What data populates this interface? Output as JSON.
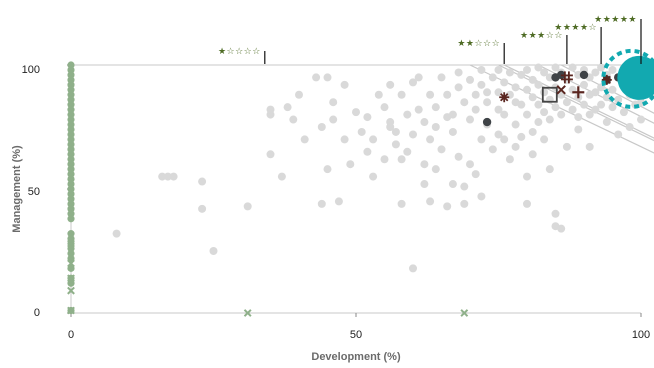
{
  "chart_data": {
    "type": "scatter",
    "xlabel": "Development (%)",
    "ylabel": "Management (%)",
    "xlim": [
      0,
      100
    ],
    "ylim": [
      0,
      100
    ],
    "x_ticks": [
      "0",
      "50",
      "100"
    ],
    "y_ticks": [
      "0",
      "50",
      "100"
    ],
    "star_thresholds": [
      {
        "x": 34,
        "label": "★☆☆☆☆"
      },
      {
        "x": 76,
        "label": "★★☆☆☆"
      },
      {
        "x": 87,
        "label": "★★★☆☆"
      },
      {
        "x": 93,
        "label": "★★★★☆"
      },
      {
        "x": 100,
        "label": "★★★★★"
      }
    ],
    "diagonals": [
      {
        "x1": 70,
        "y1": 100,
        "x2": 100,
        "y2": 70
      },
      {
        "x1": 76,
        "y1": 100,
        "x2": 100,
        "y2": 76
      },
      {
        "x1": 82,
        "y1": 100,
        "x2": 100,
        "y2": 82
      },
      {
        "x1": 75,
        "y1": 100,
        "x2": 100,
        "y2": 75
      },
      {
        "x1": 86,
        "y1": 100,
        "x2": 100,
        "y2": 86
      }
    ],
    "colors": {
      "gray_points": "#d9d9d9",
      "green_points": "#8fb08a",
      "dark_points": "#3f4347",
      "highlight_marks": "#5a2620",
      "teal_highlight": "#12a9b0",
      "star_green": "#4e6b24",
      "grid_line": "#c8c8c8"
    },
    "gray_points": [
      [
        8,
        32
      ],
      [
        16,
        55
      ],
      [
        17,
        55
      ],
      [
        18,
        55
      ],
      [
        23,
        53
      ],
      [
        23,
        42
      ],
      [
        25,
        25
      ],
      [
        31,
        43
      ],
      [
        35,
        80
      ],
      [
        35,
        82
      ],
      [
        35,
        64
      ],
      [
        37,
        55
      ],
      [
        38,
        83
      ],
      [
        39,
        78
      ],
      [
        40,
        88
      ],
      [
        41,
        70
      ],
      [
        43,
        95
      ],
      [
        44,
        44
      ],
      [
        44,
        75
      ],
      [
        45,
        58
      ],
      [
        45,
        95
      ],
      [
        46,
        85
      ],
      [
        46,
        78
      ],
      [
        47,
        45
      ],
      [
        48,
        70
      ],
      [
        48,
        92
      ],
      [
        49,
        60
      ],
      [
        50,
        81
      ],
      [
        51,
        73
      ],
      [
        52,
        65
      ],
      [
        52,
        79
      ],
      [
        53,
        55
      ],
      [
        53,
        70
      ],
      [
        54,
        88
      ],
      [
        55,
        83
      ],
      [
        55,
        62
      ],
      [
        56,
        75
      ],
      [
        56,
        92
      ],
      [
        57,
        68
      ],
      [
        57,
        73
      ],
      [
        58,
        88
      ],
      [
        58,
        44
      ],
      [
        59,
        80
      ],
      [
        59,
        65
      ],
      [
        60,
        72
      ],
      [
        60,
        93
      ],
      [
        61,
        82
      ],
      [
        61,
        95
      ],
      [
        62,
        77
      ],
      [
        62,
        60
      ],
      [
        63,
        88
      ],
      [
        63,
        70
      ],
      [
        63,
        45
      ],
      [
        64,
        83
      ],
      [
        64,
        75
      ],
      [
        65,
        95
      ],
      [
        65,
        66
      ],
      [
        66,
        88
      ],
      [
        66,
        43
      ],
      [
        67,
        80
      ],
      [
        67,
        73
      ],
      [
        68,
        97
      ],
      [
        68,
        91
      ],
      [
        68,
        63
      ],
      [
        69,
        85
      ],
      [
        69,
        44
      ],
      [
        70,
        78
      ],
      [
        70,
        94
      ],
      [
        70,
        60
      ],
      [
        71,
        88
      ],
      [
        71,
        82
      ],
      [
        72,
        98
      ],
      [
        72,
        92
      ],
      [
        72,
        70
      ],
      [
        73,
        85
      ],
      [
        73,
        76
      ],
      [
        74,
        95
      ],
      [
        74,
        66
      ],
      [
        75,
        98
      ],
      [
        75,
        89
      ],
      [
        75,
        82
      ],
      [
        75,
        72
      ],
      [
        76,
        93
      ],
      [
        76,
        80
      ],
      [
        77,
        97
      ],
      [
        77,
        88
      ],
      [
        77,
        62
      ],
      [
        78,
        91
      ],
      [
        78,
        85
      ],
      [
        78,
        76
      ],
      [
        78,
        67
      ],
      [
        79,
        96
      ],
      [
        79,
        84
      ],
      [
        79,
        71
      ],
      [
        80,
        98
      ],
      [
        80,
        90
      ],
      [
        80,
        80
      ],
      [
        80,
        55
      ],
      [
        80,
        44
      ],
      [
        81,
        94
      ],
      [
        81,
        87
      ],
      [
        81,
        73
      ],
      [
        82,
        99
      ],
      [
        82,
        92
      ],
      [
        82,
        84
      ],
      [
        82,
        77
      ],
      [
        83,
        97
      ],
      [
        83,
        89
      ],
      [
        83,
        81
      ],
      [
        84,
        95
      ],
      [
        84,
        86
      ],
      [
        84,
        78
      ],
      [
        85,
        99
      ],
      [
        85,
        91
      ],
      [
        85,
        83
      ],
      [
        85,
        40
      ],
      [
        85,
        35
      ],
      [
        86,
        97
      ],
      [
        86,
        88
      ],
      [
        86,
        80
      ],
      [
        86,
        34
      ],
      [
        87,
        94
      ],
      [
        87,
        85
      ],
      [
        88,
        99
      ],
      [
        88,
        90
      ],
      [
        88,
        82
      ],
      [
        89,
        96
      ],
      [
        89,
        87
      ],
      [
        89,
        79
      ],
      [
        90,
        98
      ],
      [
        90,
        92
      ],
      [
        90,
        84
      ],
      [
        91,
        95
      ],
      [
        91,
        88
      ],
      [
        91,
        80
      ],
      [
        92,
        97
      ],
      [
        92,
        89
      ],
      [
        92,
        82
      ],
      [
        93,
        99
      ],
      [
        93,
        91
      ],
      [
        93,
        84
      ],
      [
        94,
        96
      ],
      [
        94,
        87
      ],
      [
        95,
        98
      ],
      [
        95,
        90
      ],
      [
        95,
        83
      ],
      [
        96,
        95
      ],
      [
        96,
        86
      ],
      [
        97,
        99
      ],
      [
        97,
        92
      ],
      [
        97,
        81
      ],
      [
        98,
        96
      ],
      [
        98,
        88
      ],
      [
        99,
        99
      ],
      [
        99,
        90
      ],
      [
        99,
        84
      ],
      [
        100,
        96
      ],
      [
        100,
        85
      ],
      [
        60,
        18
      ],
      [
        62,
        52
      ],
      [
        67,
        52
      ],
      [
        58,
        62
      ],
      [
        56,
        77
      ],
      [
        64,
        58
      ],
      [
        71,
        56
      ],
      [
        69,
        51
      ],
      [
        72,
        47
      ],
      [
        66,
        79
      ],
      [
        73,
        89
      ],
      [
        76,
        70
      ],
      [
        81,
        64
      ],
      [
        83,
        70
      ],
      [
        84,
        58
      ],
      [
        87,
        67
      ],
      [
        89,
        74
      ],
      [
        91,
        67
      ],
      [
        94,
        77
      ],
      [
        96,
        72
      ],
      [
        98,
        75
      ],
      [
        100,
        78
      ]
    ],
    "green_points": [
      [
        0,
        100
      ],
      [
        0,
        98
      ],
      [
        0,
        96
      ],
      [
        0,
        94
      ],
      [
        0,
        92
      ],
      [
        0,
        90
      ],
      [
        0,
        88
      ],
      [
        0,
        86
      ],
      [
        0,
        84
      ],
      [
        0,
        82
      ],
      [
        0,
        80
      ],
      [
        0,
        78
      ],
      [
        0,
        76
      ],
      [
        0,
        74
      ],
      [
        0,
        72
      ],
      [
        0,
        70
      ],
      [
        0,
        68
      ],
      [
        0,
        66
      ],
      [
        0,
        64
      ],
      [
        0,
        62
      ],
      [
        0,
        60
      ],
      [
        0,
        58
      ],
      [
        0,
        56
      ],
      [
        0,
        54
      ],
      [
        0,
        52
      ],
      [
        0,
        50
      ],
      [
        0,
        48
      ],
      [
        0,
        46
      ],
      [
        0,
        44
      ],
      [
        0,
        42
      ],
      [
        0,
        40
      ],
      [
        0,
        38
      ],
      [
        0,
        32
      ],
      [
        0,
        30
      ],
      [
        0,
        28
      ],
      [
        0,
        26
      ],
      [
        0,
        24
      ],
      [
        0,
        22
      ],
      [
        0,
        18
      ],
      [
        0,
        14
      ],
      [
        0,
        12
      ],
      [
        0,
        1
      ]
    ],
    "green_crosses": [
      [
        0,
        28
      ],
      [
        0,
        20
      ],
      [
        0,
        14
      ],
      [
        0,
        9
      ],
      [
        0,
        1
      ],
      [
        31,
        0
      ],
      [
        69,
        0
      ]
    ],
    "dark_points": [
      [
        73,
        77
      ],
      [
        85,
        95
      ],
      [
        86,
        96
      ],
      [
        90,
        96
      ],
      [
        94,
        94
      ],
      [
        96,
        95
      ],
      [
        99,
        96
      ],
      [
        99,
        89
      ]
    ],
    "highlight_marks": [
      {
        "shape": "asterisk",
        "x": 76,
        "y": 87
      },
      {
        "shape": "hash",
        "x": 87,
        "y": 95
      },
      {
        "shape": "open-square",
        "x": 84,
        "y": 88
      },
      {
        "shape": "x",
        "x": 86,
        "y": 90
      },
      {
        "shape": "plus",
        "x": 89,
        "y": 89
      },
      {
        "shape": "asterisk",
        "x": 94,
        "y": 94
      }
    ],
    "teal_highlight": {
      "x": 99,
      "y": 94
    }
  }
}
